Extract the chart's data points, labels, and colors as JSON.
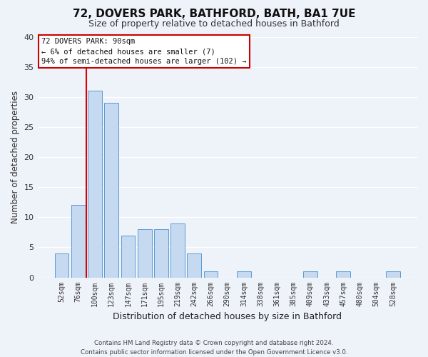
{
  "title": "72, DOVERS PARK, BATHFORD, BATH, BA1 7UE",
  "subtitle": "Size of property relative to detached houses in Bathford",
  "xlabel": "Distribution of detached houses by size in Bathford",
  "ylabel": "Number of detached properties",
  "categories": [
    "52sqm",
    "76sqm",
    "100sqm",
    "123sqm",
    "147sqm",
    "171sqm",
    "195sqm",
    "219sqm",
    "242sqm",
    "266sqm",
    "290sqm",
    "314sqm",
    "338sqm",
    "361sqm",
    "385sqm",
    "409sqm",
    "433sqm",
    "457sqm",
    "480sqm",
    "504sqm",
    "528sqm"
  ],
  "values": [
    4,
    12,
    31,
    29,
    7,
    8,
    8,
    9,
    4,
    1,
    0,
    1,
    0,
    0,
    0,
    1,
    0,
    1,
    0,
    0,
    1
  ],
  "bar_color": "#c5d9f0",
  "bar_edge_color": "#5b9bd5",
  "vline_color": "#dd0000",
  "ylim": [
    0,
    40
  ],
  "yticks": [
    0,
    5,
    10,
    15,
    20,
    25,
    30,
    35,
    40
  ],
  "annotation_title": "72 DOVERS PARK: 90sqm",
  "annotation_line1": "← 6% of detached houses are smaller (7)",
  "annotation_line2": "94% of semi-detached houses are larger (102) →",
  "annotation_box_color": "#ffffff",
  "annotation_box_edge": "#cc0000",
  "footer1": "Contains HM Land Registry data © Crown copyright and database right 2024.",
  "footer2": "Contains public sector information licensed under the Open Government Licence v3.0.",
  "bg_color": "#eef2f9",
  "grid_color": "#ffffff",
  "title_fontsize": 11,
  "subtitle_fontsize": 9
}
